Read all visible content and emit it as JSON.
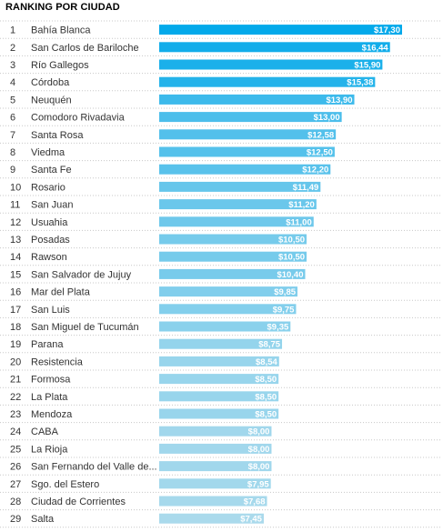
{
  "chart_data": {
    "type": "bar",
    "orientation": "horizontal",
    "title": "RANKING POR CIUDAD",
    "ranks": [
      "1",
      "2",
      "3",
      "4",
      "5",
      "6",
      "7",
      "8",
      "9",
      "10",
      "11",
      "12",
      "13",
      "14",
      "15",
      "16",
      "17",
      "18",
      "19",
      "20",
      "21",
      "22",
      "23",
      "24",
      "25",
      "26",
      "27",
      "28",
      "29"
    ],
    "categories": [
      "Bahía Blanca",
      "San Carlos de Bariloche",
      "Río Gallegos",
      "Córdoba",
      "Neuquén",
      "Comodoro Rivadavia",
      "Santa Rosa",
      "Viedma",
      "Santa Fe",
      "Rosario",
      "San Juan",
      "Usuahia",
      "Posadas",
      "Rawson",
      "San Salvador de Jujuy",
      "Mar del Plata",
      "San Luis",
      "San Miguel de Tucumán",
      "Parana",
      "Resistencia",
      "Formosa",
      "La Plata",
      "Mendoza",
      "CABA",
      "La Rioja",
      "San Fernando del Valle de...",
      "Sgo. del Estero",
      "Ciudad de Corrientes",
      "Salta"
    ],
    "values": [
      17.3,
      16.44,
      15.9,
      15.38,
      13.9,
      13.0,
      12.58,
      12.5,
      12.2,
      11.49,
      11.2,
      11.0,
      10.5,
      10.5,
      10.4,
      9.85,
      9.75,
      9.35,
      8.75,
      8.54,
      8.5,
      8.5,
      8.5,
      8.0,
      8.0,
      8.0,
      7.95,
      7.68,
      7.45
    ],
    "value_labels": [
      "$17,30",
      "$16,44",
      "$15,90",
      "$15,38",
      "$13,90",
      "$13,00",
      "$12,58",
      "$12,50",
      "$12,20",
      "$11,49",
      "$11,20",
      "$11,00",
      "$10,50",
      "$10,50",
      "$10,40",
      "$9,85",
      "$9,75",
      "$9,35",
      "$8,75",
      "$8,54",
      "$8,50",
      "$8,50",
      "$8,50",
      "$8,00",
      "$8,00",
      "$8,00",
      "$7,95",
      "$7,68",
      "$7,45"
    ],
    "xlim": [
      0,
      17.3
    ],
    "grid": false,
    "color_scale": [
      "#aadaec",
      "#03a9ea"
    ]
  }
}
